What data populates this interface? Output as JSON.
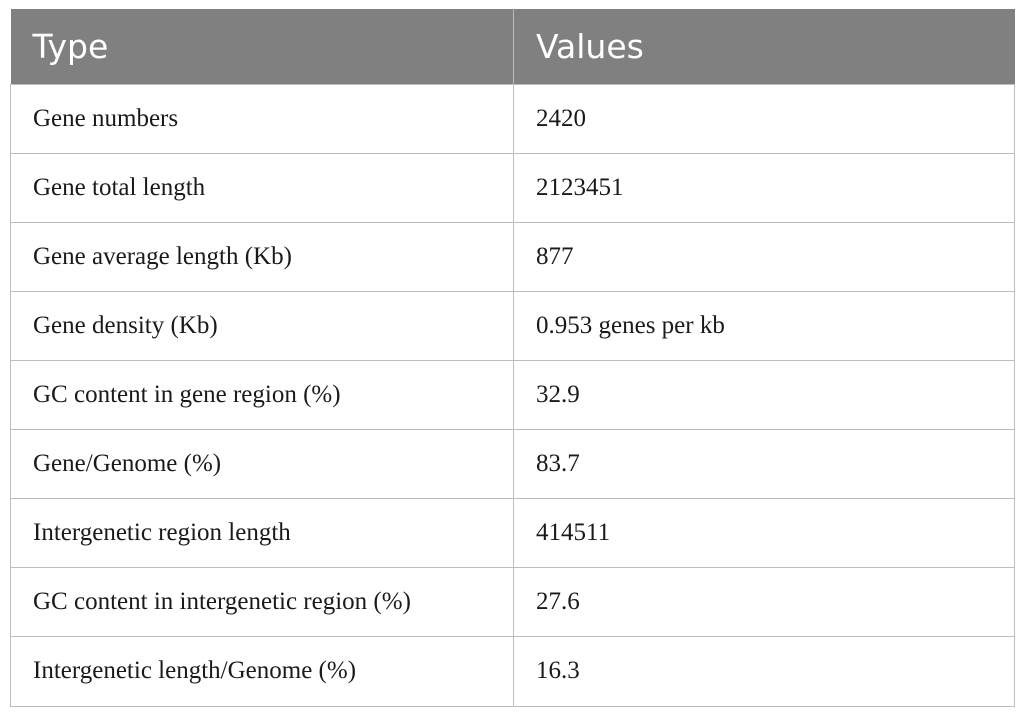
{
  "table": {
    "headers": [
      "Type",
      "Values"
    ],
    "rows": [
      [
        "Gene numbers",
        "2420"
      ],
      [
        "Gene total length",
        "2123451"
      ],
      [
        "Gene average length (Kb)",
        "877"
      ],
      [
        "Gene density (Kb)",
        "0.953 genes per kb"
      ],
      [
        "GC content in gene region (%)",
        "32.9"
      ],
      [
        "Gene/Genome (%)",
        "83.7"
      ],
      [
        "Intergenetic region length",
        "414511"
      ],
      [
        "GC content in intergenetic region (%)",
        "27.6"
      ],
      [
        "Intergenetic length/Genome (%)",
        "16.3"
      ]
    ]
  },
  "colors": {
    "header_bg": "#808080",
    "header_text": "#ffffff",
    "grid": "#bdbdbd"
  }
}
